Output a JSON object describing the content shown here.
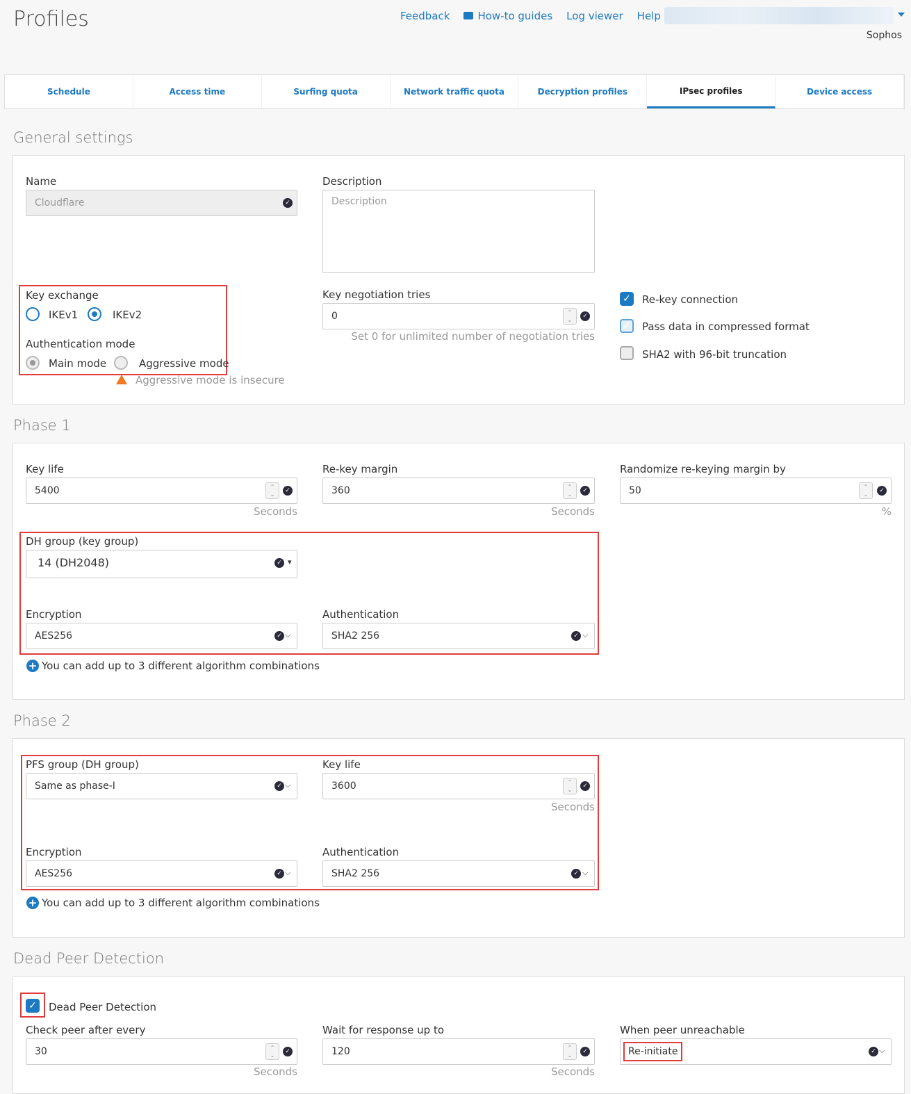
{
  "header": {
    "title": "Profiles",
    "links": [
      "Feedback",
      "How-to guides",
      "Log viewer",
      "Help"
    ],
    "org": "Sophos"
  },
  "tabs": [
    {
      "label": "Schedule"
    },
    {
      "label": "Access time"
    },
    {
      "label": "Surfing quota"
    },
    {
      "label": "Network traffic quota"
    },
    {
      "label": "Decryption profiles"
    },
    {
      "label": "IPsec profiles",
      "active": true
    },
    {
      "label": "Device access"
    }
  ],
  "general": {
    "heading": "General settings",
    "name_label": "Name",
    "name_value": "Cloudflare",
    "desc_label": "Description",
    "desc_placeholder": "Description",
    "key_exchange_label": "Key exchange",
    "ikev1": "IKEv1",
    "ikev2": "IKEv2",
    "key_exchange_selected": "IKEv2",
    "auth_mode_label": "Authentication mode",
    "main_mode": "Main mode",
    "aggressive_mode": "Aggressive mode",
    "auth_mode_selected": "Main mode",
    "aggressive_warning": "Aggressive mode is insecure",
    "tries_label": "Key negotiation tries",
    "tries_value": "0",
    "tries_hint": "Set 0 for unlimited number of negotiation tries",
    "rekey": "Re-key connection",
    "rekey_checked": true,
    "compress": "Pass data in compressed format",
    "compress_checked": true,
    "sha2": "SHA2 with 96-bit truncation",
    "sha2_checked": false
  },
  "phase1": {
    "heading": "Phase 1",
    "keylife_label": "Key life",
    "keylife": "5400",
    "rekey_margin_label": "Re-key margin",
    "rekey_margin": "360",
    "random_label": "Randomize re-keying margin by",
    "random": "50",
    "seconds": "Seconds",
    "percent": "%",
    "dh_label": "DH group (key group)",
    "dh": "14 (DH2048)",
    "enc_label": "Encryption",
    "enc": "AES256",
    "auth_label": "Authentication",
    "auth": "SHA2 256",
    "add_note": "You can add up to 3 different algorithm combinations"
  },
  "phase2": {
    "heading": "Phase 2",
    "pfs_label": "PFS group (DH group)",
    "pfs": "Same as phase-I",
    "keylife_label": "Key life",
    "keylife": "3600",
    "seconds": "Seconds",
    "enc_label": "Encryption",
    "enc": "AES256",
    "auth_label": "Authentication",
    "auth": "SHA2 256",
    "add_note": "You can add up to 3 different algorithm combinations"
  },
  "dpd": {
    "heading": "Dead Peer Detection",
    "checkbox": "Dead Peer Detection",
    "checked": true,
    "check_label": "Check peer after every",
    "check_value": "30",
    "wait_label": "Wait for response up to",
    "wait_value": "120",
    "seconds": "Seconds",
    "unreach_label": "When peer unreachable",
    "unreach_value": "Re-initiate"
  },
  "colors": {
    "accent": "#1d7ac2",
    "highlight": "#e03c3c",
    "warning": "#f07a23"
  }
}
